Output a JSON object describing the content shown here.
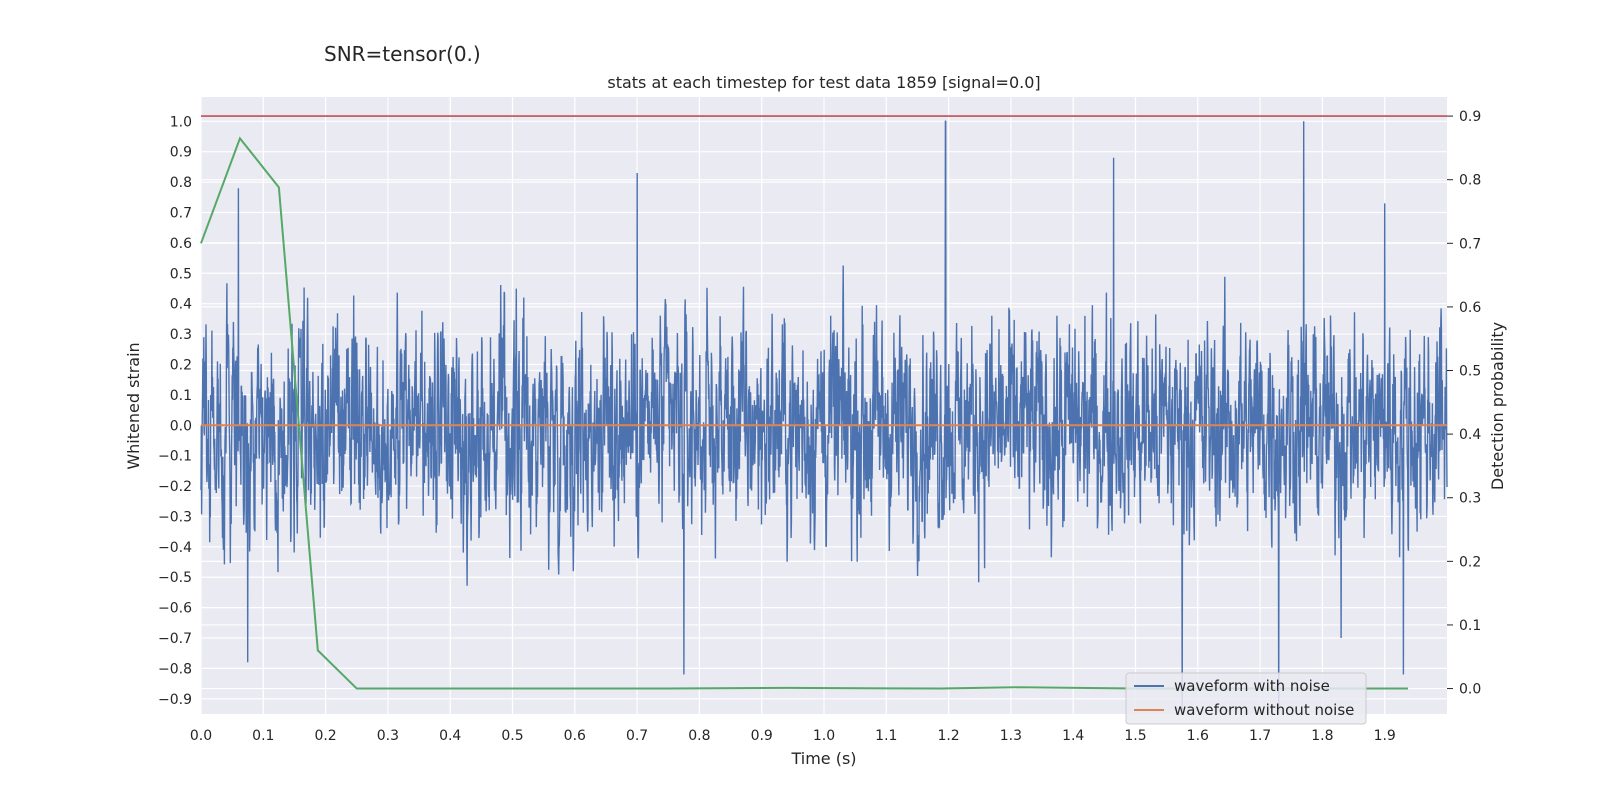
{
  "suptitle": "SNR=tensor(0.)",
  "chart_data": {
    "type": "line",
    "title": "stats at each timestep for test data 1859 [signal=0.0]",
    "xlabel": "Time (s)",
    "ylabel": "Whitened strain",
    "y2label": "Detection probability",
    "xlim": [
      0.0,
      2.0
    ],
    "ylim": [
      -0.95,
      1.08
    ],
    "y2lim": [
      -0.04,
      0.93
    ],
    "xticks": [
      "0.0",
      "0.1",
      "0.2",
      "0.3",
      "0.4",
      "0.5",
      "0.6",
      "0.7",
      "0.8",
      "0.9",
      "1.0",
      "1.1",
      "1.2",
      "1.3",
      "1.4",
      "1.5",
      "1.6",
      "1.7",
      "1.8",
      "1.9"
    ],
    "yticks": [
      "1.0",
      "0.9",
      "0.8",
      "0.7",
      "0.6",
      "0.5",
      "0.4",
      "0.3",
      "0.2",
      "0.1",
      "0.0",
      "−0.1",
      "−0.2",
      "−0.3",
      "−0.4",
      "−0.5",
      "−0.6",
      "−0.7",
      "−0.8",
      "−0.9"
    ],
    "y2ticks": [
      "0.9",
      "0.8",
      "0.7",
      "0.6",
      "0.5",
      "0.4",
      "0.3",
      "0.2",
      "0.1",
      "0.0"
    ],
    "grid": true,
    "legend_position": "lower-right",
    "colors": {
      "background": "#eaeaf2",
      "grid": "#ffffff",
      "noisy": "#4c72b0",
      "clean": "#dd8452",
      "probability": "#55a868",
      "threshold": "#c44e52"
    },
    "series": [
      {
        "name": "waveform with noise",
        "axis": "left",
        "kind": "noise",
        "sample_count": 4000,
        "amplitude_range": [
          -0.9,
          1.0
        ],
        "peaks": [
          {
            "x": 0.06,
            "y": 0.78
          },
          {
            "x": 0.075,
            "y": -0.78
          },
          {
            "x": 0.7,
            "y": 0.83
          },
          {
            "x": 0.775,
            "y": -0.82
          },
          {
            "x": 1.195,
            "y": 1.0
          },
          {
            "x": 1.465,
            "y": 0.88
          },
          {
            "x": 1.575,
            "y": -0.95
          },
          {
            "x": 1.73,
            "y": -0.95
          },
          {
            "x": 1.77,
            "y": 1.0
          },
          {
            "x": 1.83,
            "y": -0.7
          },
          {
            "x": 1.9,
            "y": 0.73
          },
          {
            "x": 1.93,
            "y": -0.82
          }
        ]
      },
      {
        "name": "waveform without noise",
        "axis": "left",
        "x": [
          0.0,
          2.0
        ],
        "y": [
          0.0,
          0.0
        ]
      },
      {
        "name": "",
        "axis": "right",
        "x": [
          0.0,
          0.0625,
          0.125,
          0.1875,
          0.25,
          0.3125,
          0.5,
          0.75,
          0.9375,
          1.1875,
          1.3125,
          1.5,
          1.75,
          1.9375
        ],
        "y": [
          0.7,
          0.865,
          0.788,
          0.06,
          0.0,
          0.0,
          0.0,
          0.0,
          0.001,
          0.0,
          0.002,
          0.0,
          0.0,
          0.0
        ]
      },
      {
        "name": "",
        "axis": "right",
        "x": [
          0.0,
          2.0
        ],
        "y": [
          0.9,
          0.9
        ]
      }
    ],
    "legend": [
      "waveform with noise",
      "waveform without noise"
    ]
  }
}
